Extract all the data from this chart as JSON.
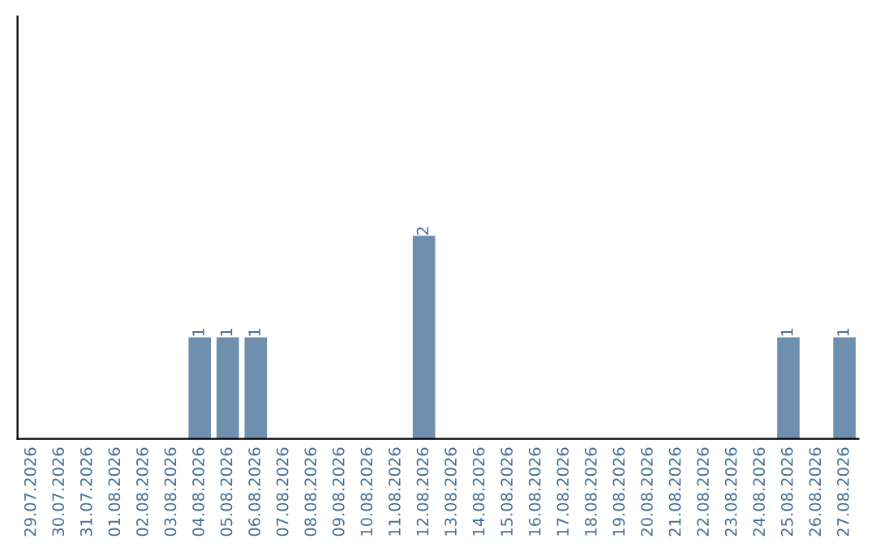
{
  "chart_data": {
    "type": "bar",
    "categories": [
      "29.07.2026",
      "30.07.2026",
      "31.07.2026",
      "01.08.2026",
      "02.08.2026",
      "03.08.2026",
      "04.08.2026",
      "05.08.2026",
      "06.08.2026",
      "07.08.2026",
      "08.08.2026",
      "09.08.2026",
      "10.08.2026",
      "11.08.2026",
      "12.08.2026",
      "13.08.2026",
      "14.08.2026",
      "15.08.2026",
      "16.08.2026",
      "17.08.2026",
      "18.08.2026",
      "19.08.2026",
      "20.08.2026",
      "21.08.2026",
      "22.08.2026",
      "23.08.2026",
      "24.08.2026",
      "25.08.2026",
      "26.08.2026",
      "27.08.2026"
    ],
    "values": [
      0,
      0,
      0,
      0,
      0,
      0,
      1,
      1,
      1,
      0,
      0,
      0,
      0,
      0,
      2,
      0,
      0,
      0,
      0,
      0,
      0,
      0,
      0,
      0,
      0,
      0,
      0,
      1,
      0,
      1
    ],
    "value_labels": [
      null,
      null,
      null,
      null,
      null,
      null,
      "1",
      "1",
      "1",
      null,
      null,
      null,
      null,
      null,
      "2",
      null,
      null,
      null,
      null,
      null,
      null,
      null,
      null,
      null,
      null,
      null,
      null,
      "1",
      null,
      "1"
    ],
    "color": "#6f8fae",
    "grid": false,
    "legend": false,
    "tick_labels": "x"
  }
}
